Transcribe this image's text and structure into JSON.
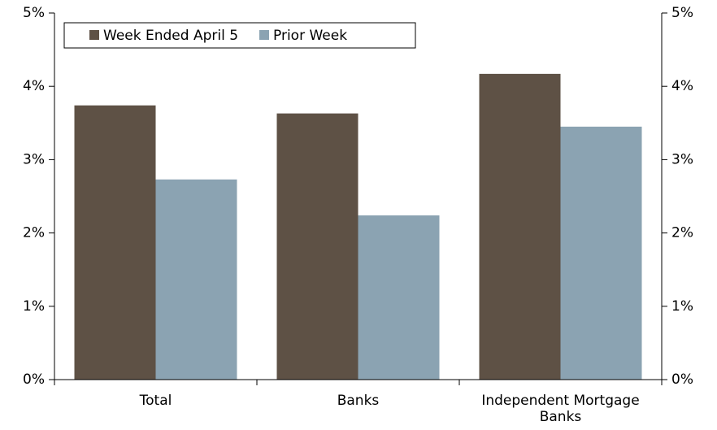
{
  "chart_data": {
    "type": "bar",
    "categories": [
      "Total",
      "Banks",
      "Independent Mortgage Banks"
    ],
    "series": [
      {
        "name": "Week Ended April 5",
        "color": "#5e5145",
        "values": [
          3.74,
          3.63,
          4.17
        ]
      },
      {
        "name": "Prior Week",
        "color": "#8ba3b2",
        "values": [
          2.73,
          2.24,
          3.45
        ]
      }
    ],
    "ylim": [
      0,
      5
    ],
    "yticks": [
      {
        "value": 0,
        "label": "0%"
      },
      {
        "value": 1,
        "label": "1%"
      },
      {
        "value": 2,
        "label": "2%"
      },
      {
        "value": 3,
        "label": "3%"
      },
      {
        "value": 4,
        "label": "4%"
      },
      {
        "value": 5,
        "label": "5%"
      }
    ],
    "y2lim": [
      0,
      5
    ],
    "y2ticks": [
      {
        "value": 0,
        "label": "0%"
      },
      {
        "value": 1,
        "label": "1%"
      },
      {
        "value": 2,
        "label": "2%"
      },
      {
        "value": 3,
        "label": "3%"
      },
      {
        "value": 4,
        "label": "4%"
      },
      {
        "value": 5,
        "label": "5%"
      }
    ],
    "legend": "top-left"
  }
}
